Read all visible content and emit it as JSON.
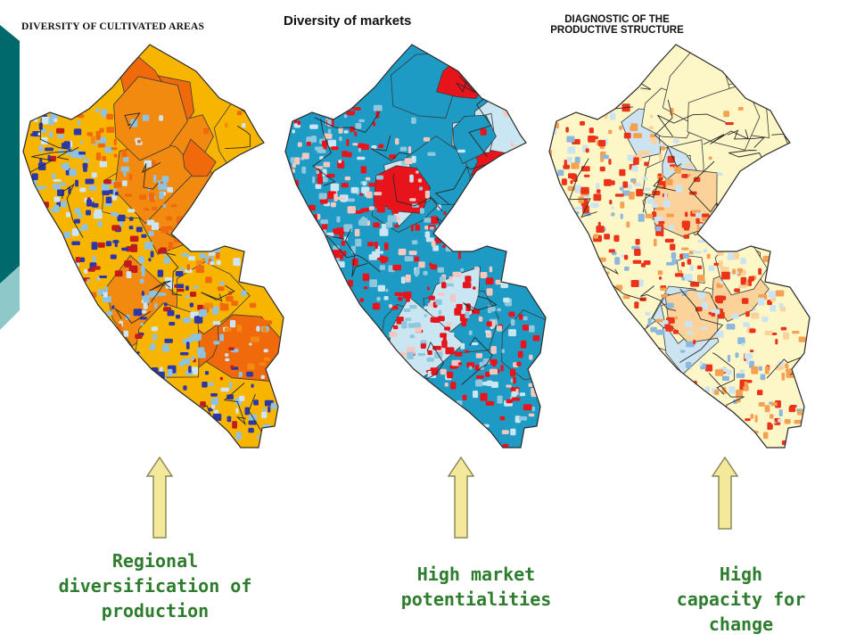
{
  "slide": {
    "accent_colors": [
      "#00696b",
      "#8fc8c9"
    ]
  },
  "panels": [
    {
      "title": "DIVERSITY OF CULTIVATED AREAS",
      "caption": [
        "Regional",
        "diversification of",
        "production"
      ],
      "palette": [
        "#f7b500",
        "#f38a10",
        "#f06a0c",
        "#c31b1b",
        "#8ec2e0",
        "#cde5f4",
        "#2c37a8",
        "#f4f0d8"
      ]
    },
    {
      "title": "Diversity of markets",
      "caption": [
        "High market",
        "potentialities"
      ],
      "palette": [
        "#1d9bc4",
        "#c9e6f2",
        "#e8141c",
        "#f4c8c0",
        "#8ec7de",
        "#f5e3da"
      ]
    },
    {
      "title": "DIAGNOSTIC OF THE PRODUCTIVE STRUCTURE",
      "caption": [
        "High",
        "capacity for",
        "change"
      ],
      "palette": [
        "#fdf6c6",
        "#fbd39a",
        "#f5a153",
        "#ea3318",
        "#cce4f2",
        "#8bb8dc",
        "#f7e6b0"
      ]
    }
  ],
  "colors": {
    "caption_text": "#2e7d2e",
    "arrow_fill": "#f4e89a",
    "arrow_stroke": "#8a8a5a",
    "border": "#2a2a2a"
  }
}
